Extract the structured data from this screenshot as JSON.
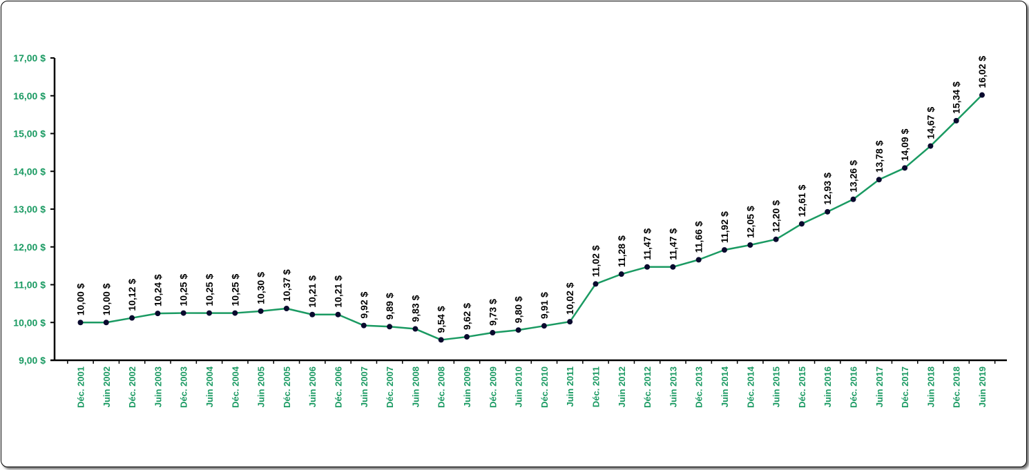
{
  "chart_data": {
    "type": "line",
    "title": "",
    "xlabel": "",
    "ylabel": "",
    "ylim": [
      9,
      17
    ],
    "yticks": [
      9,
      10,
      11,
      12,
      13,
      14,
      15,
      16,
      17
    ],
    "ytick_labels": [
      "9,00 $",
      "10,00 $",
      "11,00 $",
      "12,00 $",
      "13,00 $",
      "14,00 $",
      "15,00 $",
      "16,00 $",
      "17,00 $"
    ],
    "grid": false,
    "legend": "none",
    "categories": [
      "Déc. 2001",
      "Juin 2002",
      "Déc. 2002",
      "Juin 2003",
      "Déc. 2003",
      "Juin 2004",
      "Déc. 2004",
      "Juin 2005",
      "Déc. 2005",
      "Juin 2006",
      "Déc. 2006",
      "Juin 2007",
      "Déc. 2007",
      "Juin 2008",
      "Déc. 2008",
      "Juin 2009",
      "Déc. 2009",
      "Juin 2010",
      "Déc. 2010",
      "Juin 2011",
      "Déc. 2011",
      "Juin 2012",
      "Déc. 2012",
      "Juin 2013",
      "Déc. 2013",
      "Juin 2014",
      "Déc. 2014",
      "Juin 2015",
      "Déc. 2015",
      "Juin 2016",
      "Déc. 2016",
      "Juin 2017",
      "Déc. 2017",
      "Juin 2018",
      "Déc. 2018",
      "Juin 2019"
    ],
    "values": [
      10.0,
      10.0,
      10.12,
      10.24,
      10.25,
      10.25,
      10.25,
      10.3,
      10.37,
      10.21,
      10.21,
      9.92,
      9.89,
      9.83,
      9.54,
      9.62,
      9.73,
      9.8,
      9.91,
      10.02,
      11.02,
      11.28,
      11.47,
      11.47,
      11.66,
      11.92,
      12.05,
      12.2,
      12.61,
      12.93,
      13.26,
      13.78,
      14.09,
      14.67,
      15.34,
      16.02
    ],
    "data_labels": [
      "10,00 $",
      "10,00 $",
      "10,12 $",
      "10,24 $",
      "10,25 $",
      "10,25 $",
      "10,25 $",
      "10,30 $",
      "10,37 $",
      "10,21 $",
      "10,21 $",
      "9,92 $",
      "9,89 $",
      "9,83 $",
      "9,54 $",
      "9,62 $",
      "9,73 $",
      "9,80 $",
      "9,91 $",
      "10,02 $",
      "11,02 $",
      "11,28 $",
      "11,47 $",
      "11,47 $",
      "11,66 $",
      "11,92 $",
      "12,05 $",
      "12,20 $",
      "12,61 $",
      "12,93 $",
      "13,26 $",
      "13,78 $",
      "14,09 $",
      "14,67 $",
      "15,34 $",
      "16,02 $"
    ],
    "colors": {
      "line": "#1a9a62",
      "marker": "#0a0a2e",
      "axis_labels": "#1a9a62",
      "data_labels": "#000000"
    }
  }
}
